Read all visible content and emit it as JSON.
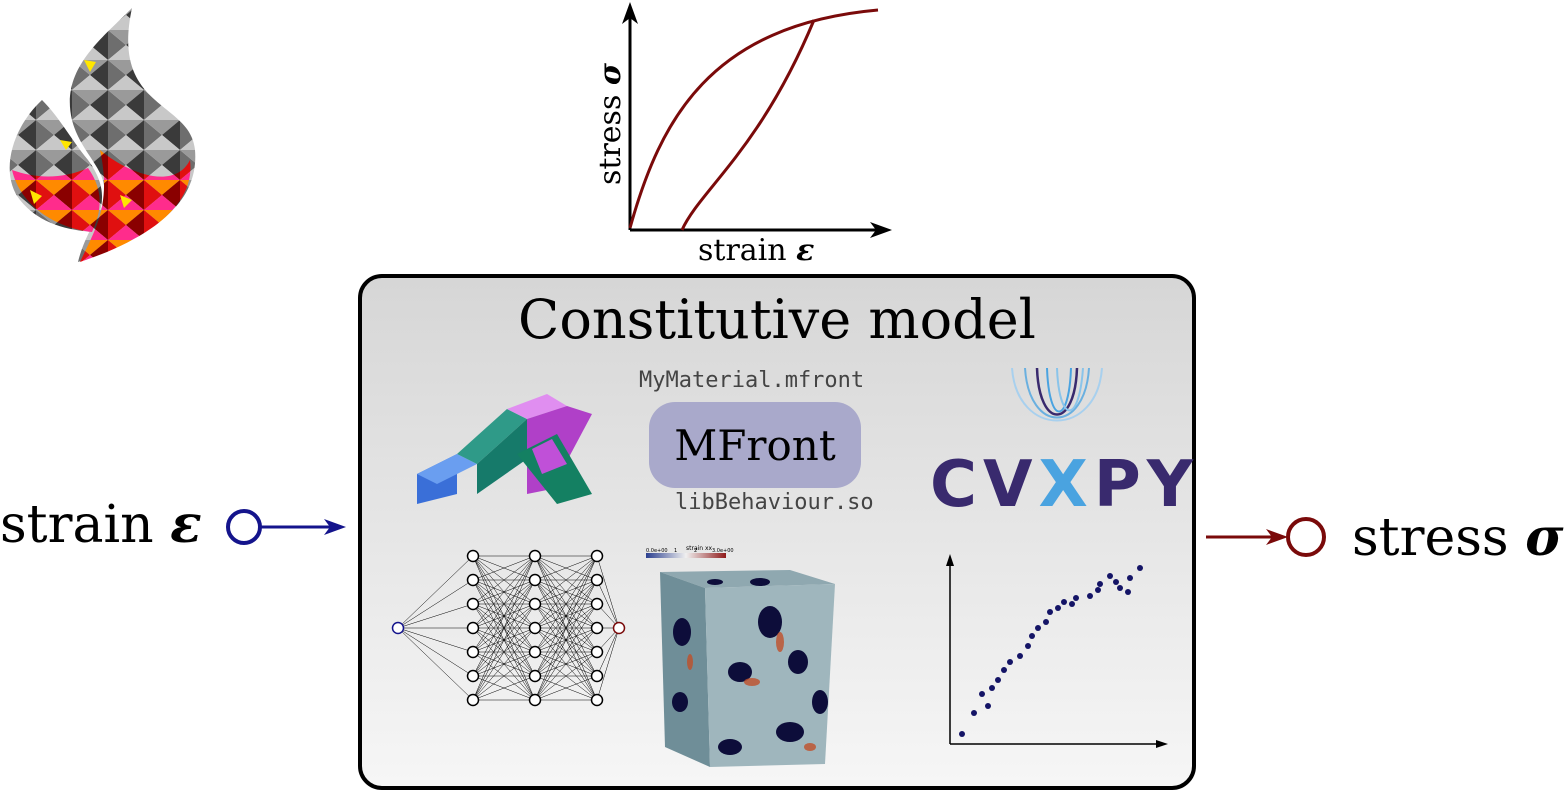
{
  "plot": {
    "xlabel": "strain",
    "xsym": "ε",
    "ylabel": "stress",
    "ysym": "σ"
  },
  "model": {
    "title": "Constitutive model",
    "mfront_file": "MyMaterial.mfront",
    "mfront_label": "MFront",
    "mfront_lib": "libBehaviour.so",
    "cvxpy_a": "CV",
    "cvxpy_x": "X",
    "cvxpy_b": "PY",
    "cube_colorbar_title": "strain xx",
    "cube_colorbar_ticks": [
      "0.0e+00",
      "1",
      "2",
      "3.0e+00"
    ]
  },
  "input": {
    "label": "strain",
    "sym": "ε"
  },
  "output": {
    "label": "stress",
    "sym": "σ"
  },
  "colors": {
    "input": "#14148c",
    "output": "#7a0a0a",
    "curve": "#7a0a0a",
    "scatter": "#141466",
    "pill": "#a9a9cb"
  }
}
